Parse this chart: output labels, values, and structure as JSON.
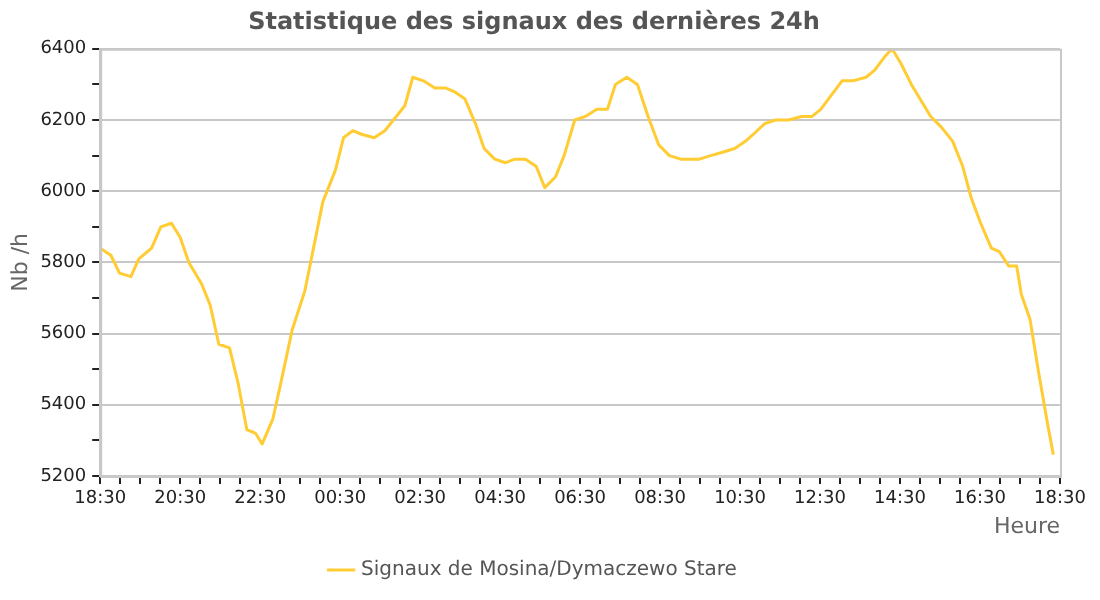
{
  "chart_data": {
    "type": "line",
    "title": "Statistique des signaux des dernières 24h",
    "xlabel": "Heure",
    "ylabel": "Nb /h",
    "x": [
      "--01-01T18:30",
      "--01-01T18:46",
      "--01-01T18:59",
      "--01-01T19:16",
      "--01-01T19:28",
      "--01-01T19:47",
      "--01-01T20:01",
      "--01-01T20:17",
      "--01-01T20:30",
      "--01-01T20:43",
      "--01-01T21:02",
      "--01-01T21:15",
      "--01-01T21:28",
      "--01-01T21:44",
      "--01-01T21:57",
      "--01-01T22:10",
      "--01-01T22:23",
      "--01-01T22:33",
      "--01-01T22:49",
      "--01-01T23:02",
      "--01-01T23:18",
      "--01-01T23:37",
      "--01-01T23:50",
      "--01-02T00:04",
      "--01-02T00:23",
      "--01-02T00:35",
      "--01-02T00:49",
      "--01-02T01:02",
      "--01-02T01:21",
      "--01-02T01:37",
      "--01-02T01:50",
      "--01-02T02:07",
      "--01-02T02:19",
      "--01-02T02:35",
      "--01-02T02:52",
      "--01-02T03:08",
      "--01-02T03:21",
      "--01-02T03:37",
      "--01-02T03:53",
      "--01-02T04:06",
      "--01-02T04:22",
      "--01-02T04:38",
      "--01-02T04:52",
      "--01-02T05:08",
      "--01-02T05:24",
      "--01-02T05:37",
      "--01-02T05:53",
      "--01-02T06:06",
      "--01-02T06:22",
      "--01-02T06:38",
      "--01-02T06:55",
      "--01-02T07:11",
      "--01-02T07:23",
      "--01-02T07:40",
      "--01-02T07:56",
      "--01-02T08:12",
      "--01-02T08:28",
      "--01-02T08:44",
      "--01-02T09:01",
      "--01-02T09:17",
      "--01-02T09:29",
      "--01-02T09:46",
      "--01-02T10:05",
      "--01-02T10:22",
      "--01-02T10:38",
      "--01-02T10:50",
      "--01-02T11:07",
      "--01-02T11:23",
      "--01-02T11:43",
      "--01-02T12:02",
      "--01-02T12:18",
      "--01-02T12:31",
      "--01-02T12:47",
      "--01-02T13:03",
      "--01-02T13:19",
      "--01-02T13:39",
      "--01-02T13:52",
      "--01-02T14:08",
      "--01-02T14:18",
      "--01-02T14:31",
      "--01-02T14:47",
      "--01-02T15:03",
      "--01-02T15:16",
      "--01-02T15:32",
      "--01-02T15:49",
      "--01-02T16:04",
      "--01-02T16:17",
      "--01-02T16:31",
      "--01-02T16:47",
      "--01-02T16:59",
      "--01-02T17:13",
      "--01-02T17:25",
      "--01-02T17:32",
      "--01-02T17:45",
      "--01-02T17:58",
      "--01-02T18:11",
      "--01-02T18:20"
    ],
    "series": [
      {
        "name": "Signaux de Mosina/Dymaczewo Stare",
        "color": "#ffcc33",
        "values": [
          5840,
          5820,
          5770,
          5760,
          5810,
          5840,
          5900,
          5910,
          5870,
          5800,
          5740,
          5680,
          5570,
          5560,
          5460,
          5330,
          5320,
          5290,
          5360,
          5470,
          5610,
          5720,
          5840,
          5970,
          6060,
          6150,
          6170,
          6160,
          6150,
          6170,
          6200,
          6240,
          6320,
          6310,
          6290,
          6290,
          6280,
          6260,
          6190,
          6120,
          6090,
          6080,
          6090,
          6090,
          6070,
          6010,
          6040,
          6100,
          6200,
          6210,
          6230,
          6230,
          6300,
          6320,
          6300,
          6210,
          6130,
          6100,
          6090,
          6090,
          6090,
          6100,
          6110,
          6120,
          6140,
          6160,
          6190,
          6200,
          6200,
          6210,
          6210,
          6230,
          6270,
          6310,
          6310,
          6320,
          6340,
          6380,
          6400,
          6360,
          6300,
          6250,
          6210,
          6180,
          6140,
          6070,
          5980,
          5910,
          5840,
          5830,
          5790,
          5790,
          5710,
          5640,
          5490,
          5350,
          5260
        ]
      }
    ],
    "xlim": [
      "--01-01T18:30",
      "--01-02T18:30"
    ],
    "xticks": [
      {
        "value": "--01-01T18:30",
        "label": "18:30"
      },
      {
        "value": "--01-01T19:00",
        "label": null
      },
      {
        "value": "--01-01T19:30",
        "label": null
      },
      {
        "value": "--01-01T20:00",
        "label": null
      },
      {
        "value": "--01-01T20:30",
        "label": "20:30"
      },
      {
        "value": "--01-01T21:00",
        "label": null
      },
      {
        "value": "--01-01T21:30",
        "label": null
      },
      {
        "value": "--01-01T22:00",
        "label": null
      },
      {
        "value": "--01-01T22:30",
        "label": "22:30"
      },
      {
        "value": "--01-01T23:00",
        "label": null
      },
      {
        "value": "--01-01T23:30",
        "label": null
      },
      {
        "value": "--01-02T00:00",
        "label": null
      },
      {
        "value": "--01-02T00:30",
        "label": "00:30"
      },
      {
        "value": "--01-02T01:00",
        "label": null
      },
      {
        "value": "--01-02T01:30",
        "label": null
      },
      {
        "value": "--01-02T02:00",
        "label": null
      },
      {
        "value": "--01-02T02:30",
        "label": "02:30"
      },
      {
        "value": "--01-02T03:00",
        "label": null
      },
      {
        "value": "--01-02T03:30",
        "label": null
      },
      {
        "value": "--01-02T04:00",
        "label": null
      },
      {
        "value": "--01-02T04:30",
        "label": "04:30"
      },
      {
        "value": "--01-02T05:00",
        "label": null
      },
      {
        "value": "--01-02T05:30",
        "label": null
      },
      {
        "value": "--01-02T06:00",
        "label": null
      },
      {
        "value": "--01-02T06:30",
        "label": "06:30"
      },
      {
        "value": "--01-02T07:00",
        "label": null
      },
      {
        "value": "--01-02T07:30",
        "label": null
      },
      {
        "value": "--01-02T08:00",
        "label": null
      },
      {
        "value": "--01-02T08:30",
        "label": "08:30"
      },
      {
        "value": "--01-02T09:00",
        "label": null
      },
      {
        "value": "--01-02T09:30",
        "label": null
      },
      {
        "value": "--01-02T10:00",
        "label": null
      },
      {
        "value": "--01-02T10:30",
        "label": "10:30"
      },
      {
        "value": "--01-02T11:00",
        "label": null
      },
      {
        "value": "--01-02T11:30",
        "label": null
      },
      {
        "value": "--01-02T12:00",
        "label": null
      },
      {
        "value": "--01-02T12:30",
        "label": "12:30"
      },
      {
        "value": "--01-02T13:00",
        "label": null
      },
      {
        "value": "--01-02T13:30",
        "label": null
      },
      {
        "value": "--01-02T14:00",
        "label": null
      },
      {
        "value": "--01-02T14:30",
        "label": "14:30"
      },
      {
        "value": "--01-02T15:00",
        "label": null
      },
      {
        "value": "--01-02T15:30",
        "label": null
      },
      {
        "value": "--01-02T16:00",
        "label": null
      },
      {
        "value": "--01-02T16:30",
        "label": "16:30"
      },
      {
        "value": "--01-02T17:00",
        "label": null
      },
      {
        "value": "--01-02T17:30",
        "label": null
      },
      {
        "value": "--01-02T18:00",
        "label": null
      },
      {
        "value": "--01-02T18:30",
        "label": "18:30"
      }
    ],
    "ylim": [
      5200,
      6400
    ],
    "yticks": [
      5200,
      {
        "value": 5300,
        "label": null
      },
      5400,
      {
        "value": 5500,
        "label": null
      },
      5600,
      {
        "value": 5700,
        "label": null
      },
      5800,
      {
        "value": 5900,
        "label": null
      },
      6000,
      {
        "value": 6100,
        "label": null
      },
      6200,
      {
        "value": 6300,
        "label": null
      },
      6400
    ],
    "grid": "y",
    "legend": "bottom",
    "marker": "none",
    "line_style": "solid"
  }
}
